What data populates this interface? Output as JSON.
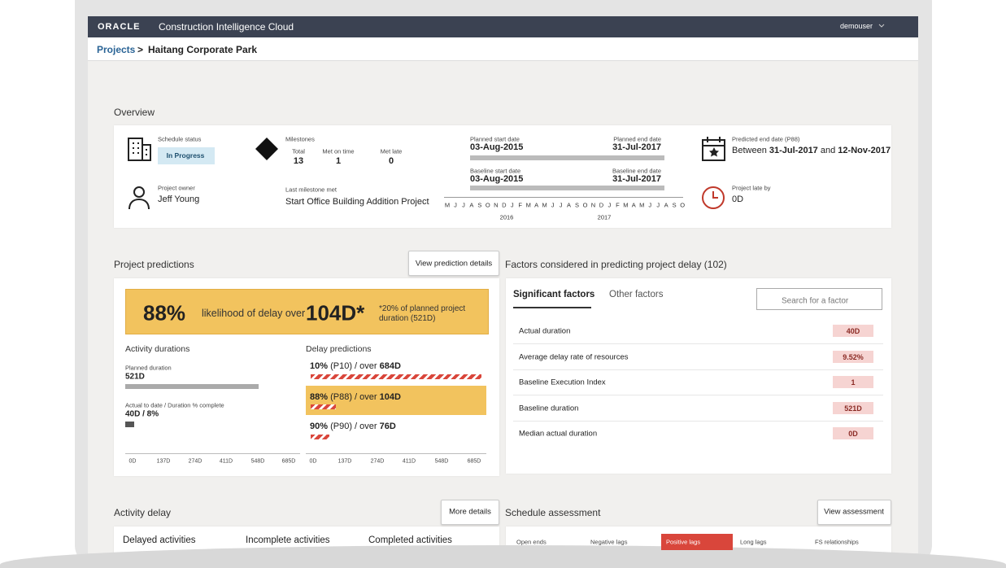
{
  "header": {
    "brand": "ORACLE",
    "product": "Construction Intelligence Cloud",
    "user": "demouser"
  },
  "breadcrumb": {
    "parent": "Projects",
    "separator": ">",
    "current": "Haitang Corporate Park"
  },
  "overview": {
    "title": "Overview",
    "schedule_status": {
      "label": "Schedule status",
      "value": "In Progress"
    },
    "project_owner": {
      "label": "Project owner",
      "value": "Jeff Young"
    },
    "milestones": {
      "label": "Milestones",
      "columns": [
        {
          "label": "Total",
          "value": 13
        },
        {
          "label": "Met on time",
          "value": 1
        },
        {
          "label": "Met late",
          "value": 0
        }
      ]
    },
    "last_milestone": {
      "label": "Last milestone met",
      "value": "Start Office Building Addition Project"
    },
    "timeline": {
      "planned_start": {
        "label": "Planned start date",
        "value": "03-Aug-2015"
      },
      "planned_end": {
        "label": "Planned end date",
        "value": "31-Jul-2017"
      },
      "baseline_start": {
        "label": "Baseline start date",
        "value": "03-Aug-2015"
      },
      "baseline_end": {
        "label": "Baseline end date",
        "value": "31-Jul-2017"
      },
      "months": [
        "M",
        "J",
        "J",
        "A",
        "S",
        "O",
        "N",
        "D",
        "J",
        "F",
        "M",
        "A",
        "M",
        "J",
        "J",
        "A",
        "S",
        "O",
        "N",
        "D",
        "J",
        "F",
        "M",
        "A",
        "M",
        "J",
        "J",
        "A",
        "S",
        "O"
      ],
      "years": [
        "2016",
        "2017"
      ]
    },
    "predicted_end": {
      "label": "Predicted end date (P88)",
      "prefix": "Between",
      "from": "31-Jul-2017",
      "conjunction": "and",
      "to": "12-Nov-2017"
    },
    "project_late": {
      "label": "Project late by",
      "value": "0D"
    }
  },
  "predictions": {
    "title": "Project predictions",
    "button": "View prediction details",
    "banner": {
      "percent": "88%",
      "text": "likelihood of delay over",
      "days": "104D*",
      "note": "*20% of planned project duration (521D)"
    },
    "activity_durations": {
      "title": "Activity durations",
      "planned_label": "Planned duration",
      "planned_value": "521D",
      "actual_label": "Actual to date / Duration % complete",
      "actual_value": "40D / 8%",
      "axis_ticks": [
        "0D",
        "137D",
        "274D",
        "411D",
        "548D",
        "685D"
      ]
    },
    "delay_predictions": {
      "title": "Delay predictions",
      "items": [
        {
          "percent": "10%",
          "text": "(P10) / over",
          "days": "684D"
        },
        {
          "percent": "88%",
          "text": "(P88) / over",
          "days": "104D"
        },
        {
          "percent": "90%",
          "text": "(P90) / over",
          "days": "76D"
        }
      ],
      "axis_ticks": [
        "0D",
        "137D",
        "274D",
        "411D",
        "548D",
        "685D"
      ]
    }
  },
  "factors": {
    "title": "Factors considered in predicting project delay (102)",
    "tabs": [
      "Significant factors",
      "Other factors"
    ],
    "search_placeholder": "Search for a factor",
    "rows": [
      {
        "name": "Actual duration",
        "value": "40D"
      },
      {
        "name": "Average delay rate of resources",
        "value": "9.52%"
      },
      {
        "name": "Baseline Execution Index",
        "value": "1"
      },
      {
        "name": "Baseline duration",
        "value": "521D"
      },
      {
        "name": "Median actual duration",
        "value": "0D"
      }
    ]
  },
  "activity_delay": {
    "title": "Activity delay",
    "button": "More details",
    "tabs": [
      "Delayed activities",
      "Incomplete activities",
      "Completed activities"
    ]
  },
  "schedule_assessment": {
    "title": "Schedule assessment",
    "button": "View assessment",
    "tabs": [
      "Open ends",
      "Negative lags",
      "Positive lags",
      "Long lags",
      "FS relationships"
    ]
  }
}
